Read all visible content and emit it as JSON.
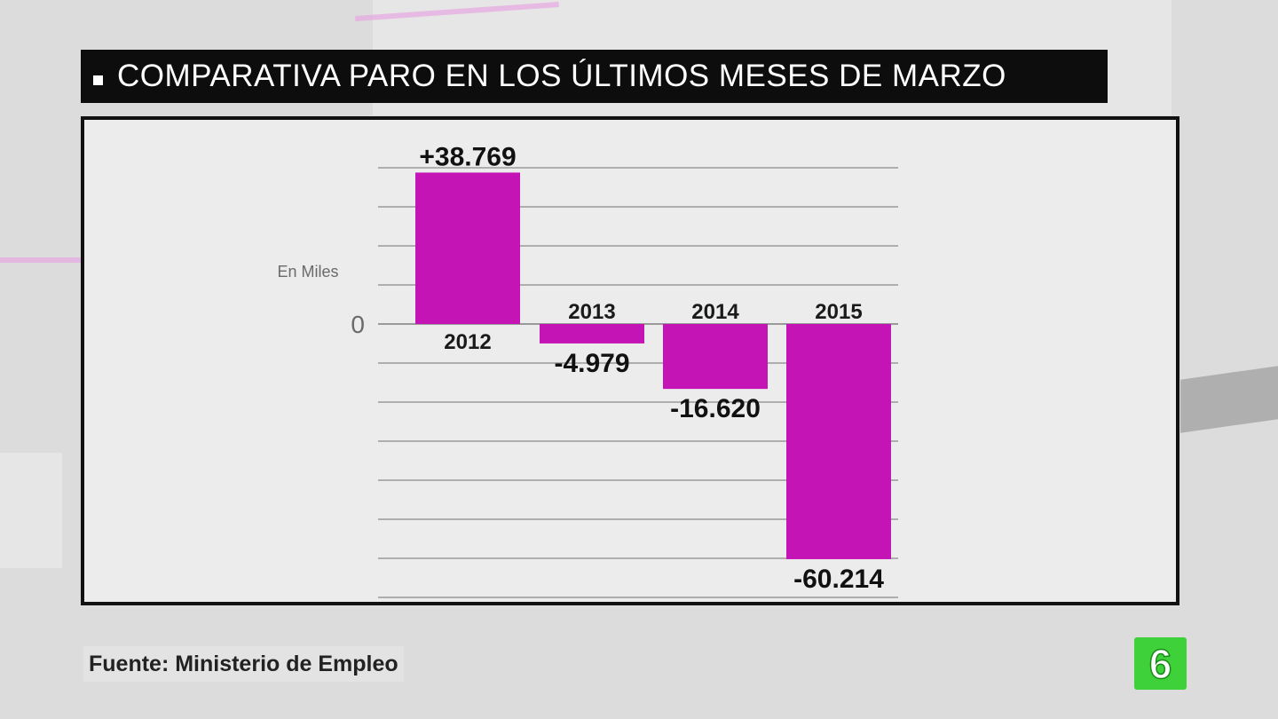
{
  "title": "COMPARATIVA PARO EN LOS ÚLTIMOS MESES DE MARZO",
  "source": "Fuente: Ministerio de Empleo",
  "logo_text": "6",
  "colors": {
    "bar": "#c514b5",
    "grid": "#8c8c8c",
    "title_bg": "#0d0d0d",
    "logo": "#3ed13a"
  },
  "chart_data": {
    "type": "bar",
    "categories": [
      "2012",
      "2013",
      "2014",
      "2015"
    ],
    "values": [
      38.769,
      -4.979,
      -16.62,
      -60.214
    ],
    "value_labels": [
      "+38.769",
      "-4.979",
      "-16.620",
      "-60.214"
    ],
    "unit_label": "En Miles",
    "zero_label": "0",
    "ylim": [
      -60.214,
      38.769
    ],
    "grid": true,
    "legend": "none"
  }
}
